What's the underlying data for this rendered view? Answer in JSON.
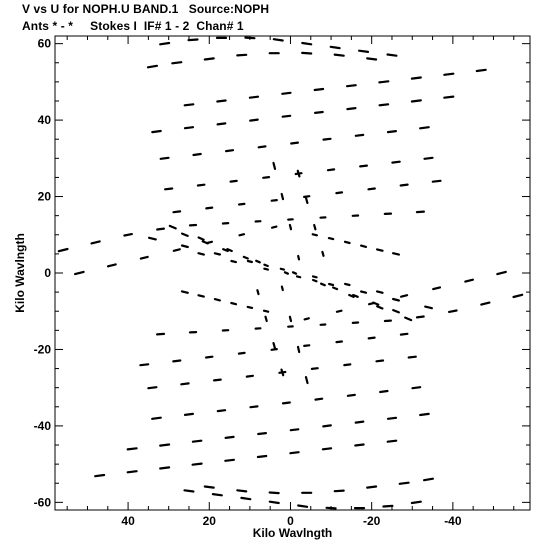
{
  "header": {
    "title": "V vs U for NOPH.U BAND.1   Source:NOPH",
    "subtitle": "Ants * - *     Stokes I  IF# 1 - 2  Chan# 1"
  },
  "chart_data": {
    "type": "scatter",
    "title": "V vs U for NOPH.U BAND.1   Source:NOPH",
    "subtitle": "Ants * - *     Stokes I  IF# 1 - 2  Chan# 1",
    "xlabel": "Kilo Wavlngth",
    "ylabel": "Kilo Wavlngth",
    "xlim": [
      58,
      -59
    ],
    "ylim": [
      -62,
      62
    ],
    "x_reversed": true,
    "xticks": [
      40,
      20,
      0,
      -20,
      -40
    ],
    "xtick_labels": [
      "40",
      "20",
      "0",
      "-20",
      "-40"
    ],
    "yticks": [
      60,
      40,
      20,
      0,
      -20,
      -40,
      -60
    ],
    "ytick_labels": [
      "60",
      "40",
      "20",
      "0",
      "-20",
      "-40",
      "-60"
    ],
    "grid": false,
    "marker": "short dashes (uv tracks)",
    "color": "#000000",
    "series": [
      {
        "description": "uv coverage tracks, each point mirrored (u,v) and (-u,-v)",
        "tracks": [
          {
            "x": [
              34,
              28,
              20,
              12,
              4,
              -4,
              -12,
              -20
            ],
            "y": [
              54,
              55,
              56,
              57,
              57.5,
              57.5,
              57,
              56
            ]
          },
          {
            "x": [
              25,
              17,
              9,
              1,
              -7,
              -15,
              -23,
              -31,
              -39,
              -47
            ],
            "y": [
              44,
              45,
              46,
              47,
              48,
              49,
              50,
              51,
              52,
              53
            ]
          },
          {
            "x": [
              33,
              25,
              17,
              9,
              1,
              -7,
              -15,
              -23,
              -31,
              -39
            ],
            "y": [
              37,
              38,
              39,
              40,
              41,
              42,
              43,
              44,
              45,
              46
            ]
          },
          {
            "x": [
              31,
              23,
              15,
              7,
              -1,
              -9,
              -17,
              -25,
              -33
            ],
            "y": [
              30,
              31,
              32,
              33,
              34,
              35,
              36,
              37,
              38
            ]
          },
          {
            "x": [
              30,
              22,
              14,
              6,
              -2,
              -10,
              -18,
              -26,
              -34
            ],
            "y": [
              22,
              23,
              24,
              25,
              26,
              27,
              28,
              29,
              30
            ]
          },
          {
            "x": [
              28,
              20,
              12,
              4,
              -4,
              -12,
              -20,
              -28,
              -36
            ],
            "y": [
              16,
              17,
              18,
              19,
              20,
              21,
              22,
              23,
              24
            ]
          },
          {
            "x": [
              56,
              48,
              40,
              32,
              24,
              16,
              8,
              0,
              -8,
              -16,
              -24,
              -32
            ],
            "y": [
              6,
              8,
              10,
              11.5,
              12.5,
              13,
              13.5,
              14,
              14.5,
              15,
              15.5,
              16
            ]
          },
          {
            "x": [
              52,
              44,
              36,
              28,
              20,
              12,
              4
            ],
            "y": [
              0,
              2,
              4,
              6,
              8,
              10,
              12
            ]
          },
          {
            "x": [
              34,
              26,
              18,
              10,
              2,
              -6,
              -14,
              -22
            ],
            "y": [
              9,
              7,
              5,
              3,
              1,
              -1,
              -3,
              -5
            ]
          },
          {
            "x": [
              29,
              22,
              15,
              8,
              1
            ],
            "y": [
              12,
              9,
              6,
              3,
              0
            ]
          },
          {
            "x": [
              26,
              21,
              16,
              11,
              6,
              1
            ],
            "y": [
              10,
              8,
              6,
              4,
              2,
              0
            ]
          },
          {
            "x": [
              4,
              2,
              0,
              -2
            ],
            "y": [
              28,
              20,
              12,
              4
            ]
          },
          {
            "x": [
              -2,
              -4,
              -6,
              -8
            ],
            "y": [
              26,
              19,
              12,
              5
            ]
          },
          {
            "x": [
              -6,
              -10,
              -14,
              -18,
              -22,
              -26
            ],
            "y": [
              10,
              9,
              8,
              7,
              6,
              5
            ]
          },
          {
            "x": [
              31,
              24,
              17,
              10,
              3,
              -4,
              -11,
              -18,
              -25
            ],
            "y": [
              60,
              61,
              61.5,
              61.5,
              61,
              60,
              59,
              58,
              57
            ]
          }
        ]
      }
    ]
  }
}
